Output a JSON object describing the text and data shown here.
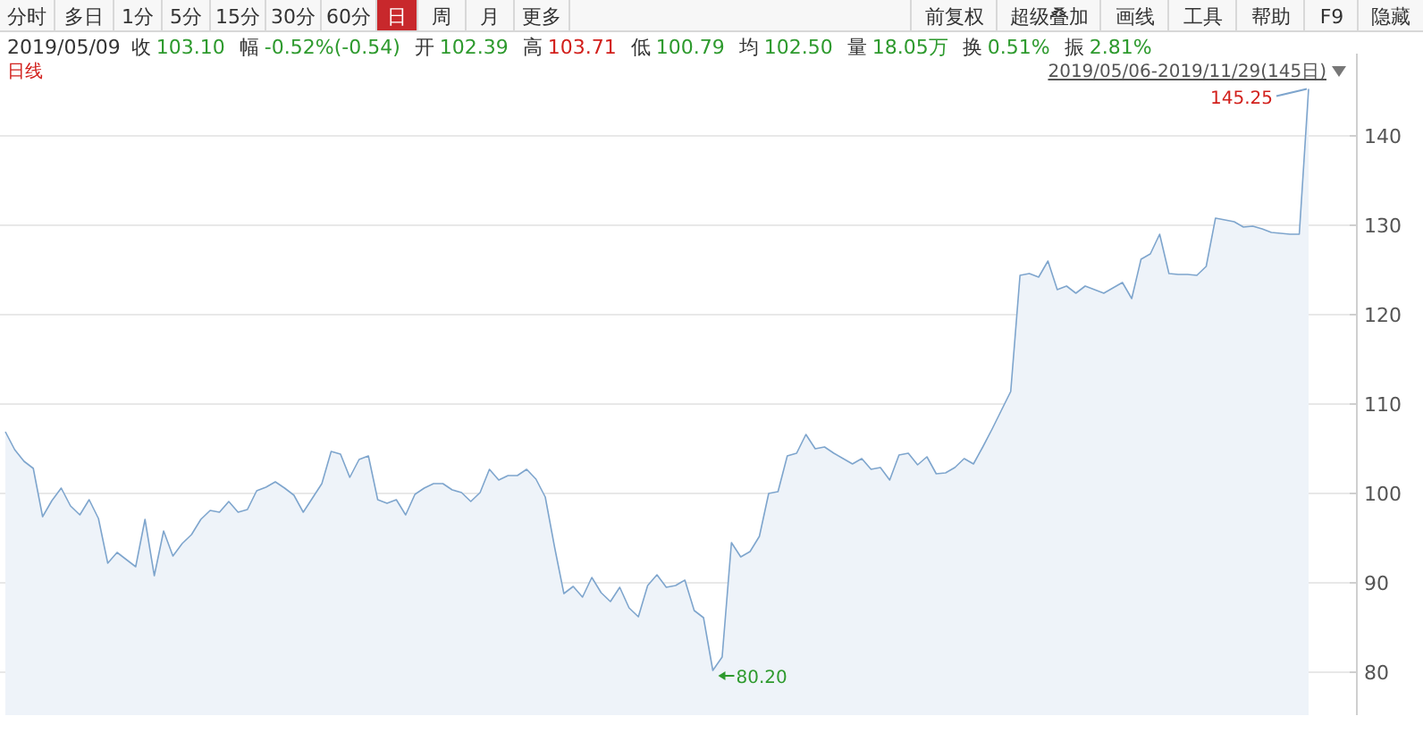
{
  "chart_data": {
    "type": "area",
    "categories": [
      null,
      null,
      null,
      null,
      null,
      null,
      null,
      null,
      null,
      null,
      null,
      null,
      null,
      null,
      null,
      null,
      null,
      null,
      null,
      null,
      null,
      null,
      null,
      null,
      null,
      null,
      null,
      null,
      null,
      null,
      null,
      null,
      null,
      null,
      null,
      null,
      null,
      null,
      null,
      null,
      null,
      null,
      null,
      null,
      null,
      null,
      null,
      null,
      null,
      null,
      null,
      null,
      null,
      null,
      null,
      null,
      null,
      null,
      null,
      null,
      null,
      null,
      null,
      null,
      null,
      null,
      null,
      null,
      null,
      null,
      null,
      null,
      null,
      null,
      null,
      null,
      null,
      null,
      null,
      null,
      null,
      null,
      null,
      null,
      null,
      null,
      null,
      null,
      null,
      null,
      null,
      null,
      null,
      null,
      null,
      null,
      null,
      null,
      null,
      null,
      null,
      null,
      null,
      null,
      null,
      null,
      null,
      null,
      null,
      null,
      null,
      null,
      null,
      null,
      null,
      null,
      null,
      null,
      null,
      null,
      null,
      null,
      null,
      null,
      null,
      null,
      null,
      null,
      null,
      null,
      null,
      null,
      null,
      null,
      null,
      null,
      null,
      null,
      null,
      null,
      null
    ],
    "series": [
      {
        "color": "#7ea5cd",
        "values": [
          106.9,
          104.9,
          103.6,
          102.8,
          97.4,
          99.2,
          100.6,
          98.6,
          97.6,
          99.3,
          97.2,
          92.2,
          93.4,
          92.6,
          91.8,
          97.1,
          90.8,
          95.8,
          93.0,
          94.4,
          95.4,
          97.1,
          98.1,
          97.9,
          99.1,
          97.9,
          98.2,
          100.3,
          100.7,
          101.3,
          100.6,
          99.8,
          97.9,
          99.5,
          101.1,
          104.7,
          104.4,
          101.8,
          103.8,
          104.2,
          99.3,
          98.9,
          99.3,
          97.6,
          99.9,
          100.6,
          101.1,
          101.1,
          100.4,
          100.1,
          99.1,
          100.1,
          102.7,
          101.5,
          102.0,
          102.0,
          102.7,
          101.6,
          99.6,
          94.0,
          88.8,
          89.6,
          88.4,
          90.6,
          88.9,
          87.9,
          89.5,
          87.2,
          86.2,
          89.7,
          90.9,
          89.5,
          89.7,
          90.3,
          86.9,
          86.1,
          80.2,
          81.7,
          94.5,
          92.9,
          93.5,
          95.2,
          100.0,
          100.2,
          104.2,
          104.5,
          106.6,
          105.0,
          105.2,
          104.5,
          103.9,
          103.3,
          103.9,
          102.7,
          102.9,
          101.5,
          104.3,
          104.5,
          103.2,
          104.1,
          102.2,
          102.3,
          102.9,
          103.9,
          103.3,
          105.2,
          107.2,
          109.3,
          111.4,
          124.4,
          124.6,
          124.2,
          126.0,
          122.8,
          123.2,
          122.4,
          123.2,
          122.8,
          122.4,
          123.0,
          123.6,
          121.8,
          126.2,
          126.8,
          129.0,
          124.6,
          124.5,
          124.5,
          124.4,
          125.4,
          130.8,
          130.6,
          130.4,
          129.8,
          129.9,
          129.6,
          129.2,
          129.1,
          129.0,
          129.0,
          145.25
        ]
      }
    ],
    "ylim": [
      75.2,
      148.8
    ],
    "yticks": [
      80,
      90,
      100,
      110,
      120,
      130,
      140
    ],
    "grid": "y",
    "annotations": [
      "分时",
      "多日",
      "1分",
      "5分",
      "15分",
      "30分",
      "60分",
      "日",
      "周",
      "月",
      "更多",
      "前复权",
      "超级叠加",
      "画线",
      "工具",
      "帮助",
      "F9",
      "隐藏",
      "2019/05/09",
      "收",
      "103.10",
      "幅",
      "-0.52%(-0.54)",
      "开",
      "102.39",
      "高",
      "103.71",
      "低",
      "100.79",
      "均",
      "102.50",
      "量",
      "18.05万",
      "换",
      "0.51%",
      "振",
      "2.81%",
      "日线",
      "2019/05/06-2019/11/29(145日)",
      "145.25",
      "80.20"
    ]
  }
}
